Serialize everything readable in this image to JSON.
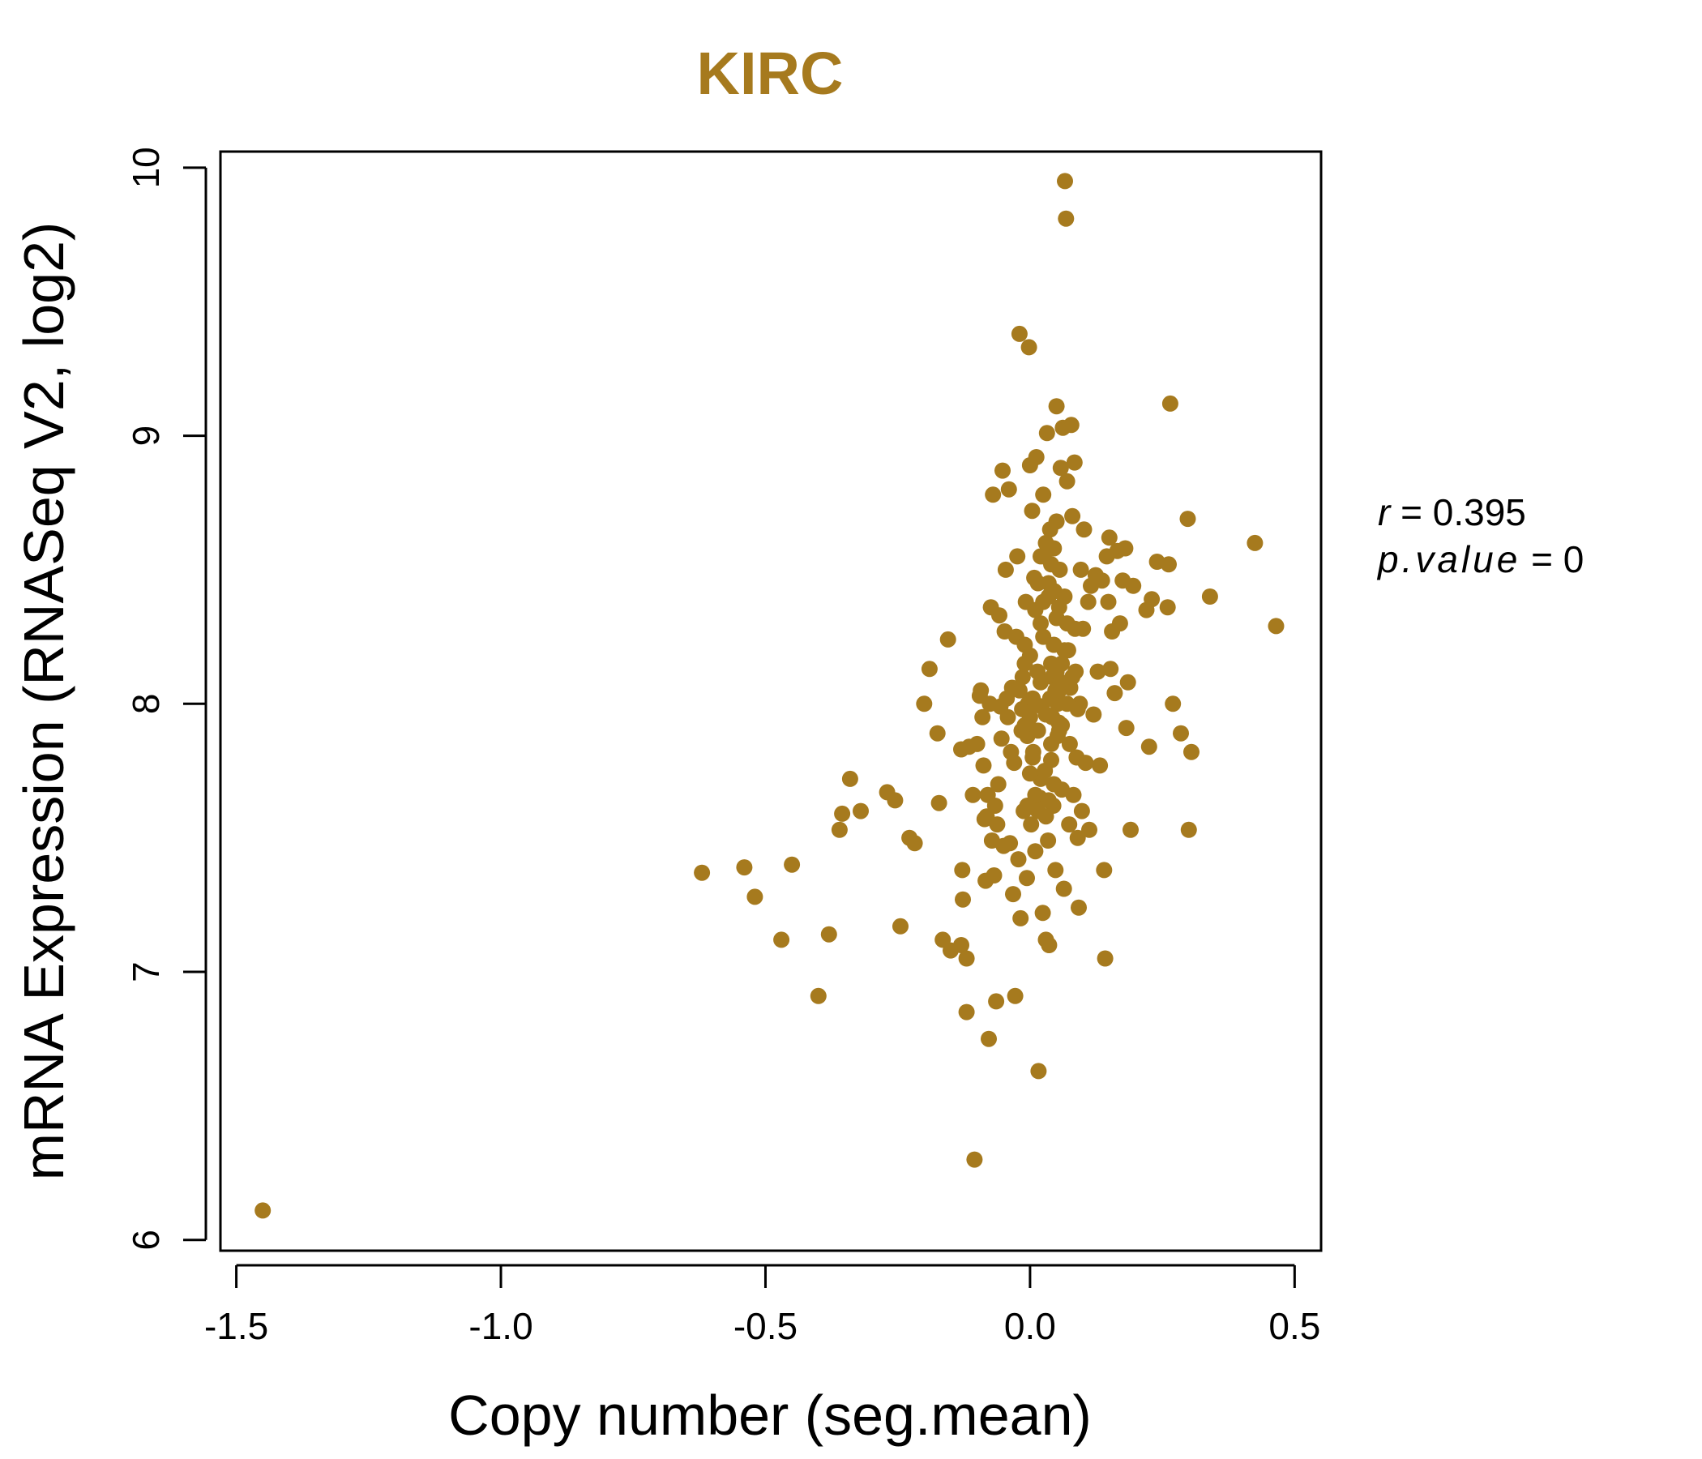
{
  "chart_data": {
    "type": "scatter",
    "title": "KIRC",
    "xlabel": "Copy number (seg.mean)",
    "ylabel": "mRNA Expression (RNASeq V2, log2)",
    "xlim": [
      -1.53,
      0.55
    ],
    "ylim": [
      5.96,
      10.06
    ],
    "x_ticks": [
      -1.5,
      -1.0,
      -0.5,
      0.0,
      0.5
    ],
    "x_tick_labels": [
      "-1.5",
      "-1.0",
      "-0.5",
      "0.0",
      "0.5"
    ],
    "y_ticks": [
      6,
      7,
      8,
      9,
      10
    ],
    "y_tick_labels": [
      "6",
      "7",
      "8",
      "9",
      "10"
    ],
    "grid": false,
    "point_color": "#A67A1E",
    "title_color": "#A67A1E",
    "annotations": {
      "r_label": "r",
      "r_value": "0.395",
      "p_label": "p.value",
      "p_value": "0"
    },
    "points": [
      [
        -1.45,
        6.11
      ],
      [
        -0.62,
        7.37
      ],
      [
        -0.54,
        7.39
      ],
      [
        -0.52,
        7.28
      ],
      [
        -0.47,
        7.12
      ],
      [
        -0.45,
        7.4
      ],
      [
        -0.4,
        6.91
      ],
      [
        -0.38,
        7.14
      ],
      [
        -0.36,
        7.53
      ],
      [
        -0.355,
        7.59
      ],
      [
        -0.34,
        7.72
      ],
      [
        -0.32,
        7.6
      ],
      [
        -0.27,
        7.67
      ],
      [
        -0.255,
        7.64
      ],
      [
        -0.245,
        7.17
      ],
      [
        -0.228,
        7.5
      ],
      [
        -0.218,
        7.48
      ],
      [
        -0.2,
        8.0
      ],
      [
        -0.19,
        8.13
      ],
      [
        -0.175,
        7.89
      ],
      [
        -0.172,
        7.63
      ],
      [
        -0.165,
        7.12
      ],
      [
        -0.155,
        8.24
      ],
      [
        -0.15,
        7.08
      ],
      [
        -0.128,
        7.38
      ],
      [
        -0.13,
        7.83
      ],
      [
        -0.13,
        7.1
      ],
      [
        -0.127,
        7.27
      ],
      [
        -0.12,
        6.85
      ],
      [
        -0.12,
        7.05
      ],
      [
        -0.115,
        7.84
      ],
      [
        -0.108,
        7.66
      ],
      [
        -0.105,
        6.3
      ],
      [
        -0.1,
        7.85
      ],
      [
        -0.095,
        8.03
      ],
      [
        -0.093,
        8.05
      ],
      [
        -0.09,
        7.95
      ],
      [
        -0.088,
        7.77
      ],
      [
        -0.086,
        7.57
      ],
      [
        -0.084,
        7.34
      ],
      [
        -0.082,
        7.58
      ],
      [
        -0.08,
        7.66
      ],
      [
        -0.078,
        6.75
      ],
      [
        -0.076,
        8.0
      ],
      [
        -0.074,
        8.36
      ],
      [
        -0.072,
        7.49
      ],
      [
        -0.07,
        8.78
      ],
      [
        -0.068,
        7.36
      ],
      [
        -0.066,
        7.62
      ],
      [
        -0.064,
        6.89
      ],
      [
        -0.062,
        7.55
      ],
      [
        -0.06,
        7.7
      ],
      [
        -0.058,
        8.33
      ],
      [
        -0.056,
        7.99
      ],
      [
        -0.054,
        7.87
      ],
      [
        -0.052,
        8.87
      ],
      [
        -0.05,
        7.47
      ],
      [
        -0.048,
        8.27
      ],
      [
        -0.046,
        8.5
      ],
      [
        -0.044,
        8.02
      ],
      [
        -0.042,
        7.95
      ],
      [
        -0.04,
        8.8
      ],
      [
        -0.038,
        7.48
      ],
      [
        -0.036,
        7.82
      ],
      [
        -0.034,
        8.06
      ],
      [
        -0.032,
        7.29
      ],
      [
        -0.03,
        7.78
      ],
      [
        -0.028,
        6.91
      ],
      [
        -0.026,
        8.25
      ],
      [
        -0.024,
        8.55
      ],
      [
        -0.022,
        7.42
      ],
      [
        -0.02,
        9.38
      ],
      [
        -0.018,
        7.2
      ],
      [
        -0.016,
        7.9
      ],
      [
        -0.014,
        8.1
      ],
      [
        -0.012,
        7.6
      ],
      [
        -0.01,
        8.15
      ],
      [
        -0.008,
        8.38
      ],
      [
        -0.006,
        7.35
      ],
      [
        -0.004,
        8.0
      ],
      [
        -0.002,
        9.33
      ],
      [
        0.0,
        8.89
      ],
      [
        0.0,
        7.95
      ],
      [
        0.002,
        7.55
      ],
      [
        0.004,
        8.72
      ],
      [
        0.006,
        7.82
      ],
      [
        0.008,
        8.47
      ],
      [
        0.01,
        7.45
      ],
      [
        0.012,
        8.92
      ],
      [
        0.014,
        8.12
      ],
      [
        0.016,
        6.63
      ],
      [
        0.018,
        7.65
      ],
      [
        0.02,
        8.3
      ],
      [
        0.022,
        7.99
      ],
      [
        0.024,
        7.22
      ],
      [
        0.026,
        8.55
      ],
      [
        0.028,
        7.75
      ],
      [
        0.03,
        7.12
      ],
      [
        0.032,
        9.01
      ],
      [
        0.034,
        7.49
      ],
      [
        0.036,
        7.1
      ],
      [
        0.038,
        8.65
      ],
      [
        0.04,
        7.85
      ],
      [
        0.042,
        8.1
      ],
      [
        0.044,
        7.62
      ],
      [
        0.046,
        8.42
      ],
      [
        0.048,
        7.38
      ],
      [
        0.05,
        9.11
      ],
      [
        0.052,
        8.0
      ],
      [
        0.054,
        7.93
      ],
      [
        0.056,
        8.5
      ],
      [
        0.058,
        8.88
      ],
      [
        0.06,
        7.68
      ],
      [
        0.062,
        9.03
      ],
      [
        0.064,
        7.31
      ],
      [
        0.066,
        9.95
      ],
      [
        0.068,
        9.81
      ],
      [
        0.07,
        8.83
      ],
      [
        0.072,
        8.2
      ],
      [
        0.074,
        7.55
      ],
      [
        0.076,
        8.06
      ],
      [
        0.078,
        9.04
      ],
      [
        0.08,
        8.7
      ],
      [
        0.082,
        7.66
      ],
      [
        0.084,
        8.9
      ],
      [
        0.086,
        8.12
      ],
      [
        0.088,
        7.8
      ],
      [
        0.09,
        7.5
      ],
      [
        0.092,
        7.24
      ],
      [
        0.094,
        8.0
      ],
      [
        0.096,
        8.5
      ],
      [
        0.098,
        7.6
      ],
      [
        0.1,
        8.28
      ],
      [
        0.102,
        8.65
      ],
      [
        0.105,
        7.78
      ],
      [
        0.11,
        8.38
      ],
      [
        0.112,
        7.53
      ],
      [
        0.115,
        8.44
      ],
      [
        0.12,
        7.96
      ],
      [
        0.124,
        8.48
      ],
      [
        0.128,
        8.12
      ],
      [
        0.132,
        7.77
      ],
      [
        0.136,
        8.46
      ],
      [
        0.14,
        7.38
      ],
      [
        0.142,
        7.05
      ],
      [
        0.145,
        8.55
      ],
      [
        0.148,
        8.38
      ],
      [
        0.15,
        8.62
      ],
      [
        0.152,
        8.13
      ],
      [
        0.155,
        8.27
      ],
      [
        0.16,
        8.04
      ],
      [
        0.165,
        8.57
      ],
      [
        0.17,
        8.3
      ],
      [
        0.175,
        8.46
      ],
      [
        0.18,
        8.58
      ],
      [
        0.182,
        7.91
      ],
      [
        0.185,
        8.08
      ],
      [
        0.19,
        7.53
      ],
      [
        0.195,
        8.44
      ],
      [
        0.22,
        8.35
      ],
      [
        0.225,
        7.84
      ],
      [
        0.23,
        8.39
      ],
      [
        0.24,
        8.53
      ],
      [
        0.26,
        8.36
      ],
      [
        0.262,
        8.52
      ],
      [
        0.265,
        9.12
      ],
      [
        0.27,
        8.0
      ],
      [
        0.285,
        7.89
      ],
      [
        0.298,
        8.69
      ],
      [
        0.3,
        7.53
      ],
      [
        0.305,
        7.82
      ],
      [
        0.34,
        8.4
      ],
      [
        0.425,
        8.6
      ],
      [
        0.465,
        8.29
      ],
      [
        -0.02,
        8.05
      ],
      [
        -0.015,
        7.98
      ],
      [
        -0.01,
        8.22
      ],
      [
        -0.005,
        7.88
      ],
      [
        0.0,
        8.18
      ],
      [
        0.005,
        8.02
      ],
      [
        0.01,
        8.35
      ],
      [
        0.015,
        7.9
      ],
      [
        0.02,
        8.08
      ],
      [
        0.025,
        8.25
      ],
      [
        0.03,
        7.96
      ],
      [
        0.035,
        8.4
      ],
      [
        0.04,
        8.15
      ],
      [
        0.045,
        7.7
      ],
      [
        0.05,
        8.32
      ],
      [
        0.055,
        8.05
      ],
      [
        0.06,
        7.92
      ],
      [
        0.065,
        8.2
      ],
      [
        0.07,
        8.0
      ],
      [
        0.075,
        7.85
      ],
      [
        0.08,
        8.1
      ],
      [
        0.085,
        8.28
      ],
      [
        0.09,
        7.98
      ],
      [
        0.03,
        8.6
      ],
      [
        0.035,
        8.45
      ],
      [
        0.04,
        8.52
      ],
      [
        0.045,
        8.58
      ],
      [
        0.05,
        8.68
      ],
      [
        0.055,
        8.36
      ],
      [
        0.025,
        8.78
      ],
      [
        0.02,
        7.72
      ],
      [
        0.015,
        7.6
      ],
      [
        0.01,
        7.66
      ],
      [
        0.005,
        7.8
      ],
      [
        0.0,
        7.74
      ],
      [
        -0.005,
        7.62
      ],
      [
        0.03,
        7.58
      ],
      [
        0.035,
        7.64
      ],
      [
        0.04,
        7.79
      ],
      [
        0.045,
        8.22
      ],
      [
        0.05,
        8.12
      ],
      [
        0.055,
        7.9
      ],
      [
        0.06,
        8.15
      ],
      [
        0.065,
        8.4
      ],
      [
        0.07,
        8.3
      ],
      [
        0.015,
        8.45
      ],
      [
        0.02,
        8.55
      ],
      [
        0.025,
        8.38
      ],
      [
        0.01,
        8.0
      ],
      [
        -0.01,
        7.92
      ],
      [
        0.038,
        8.02
      ],
      [
        0.042,
        7.95
      ],
      [
        0.048,
        8.05
      ],
      [
        0.052,
        7.88
      ],
      [
        0.058,
        8.08
      ]
    ]
  }
}
